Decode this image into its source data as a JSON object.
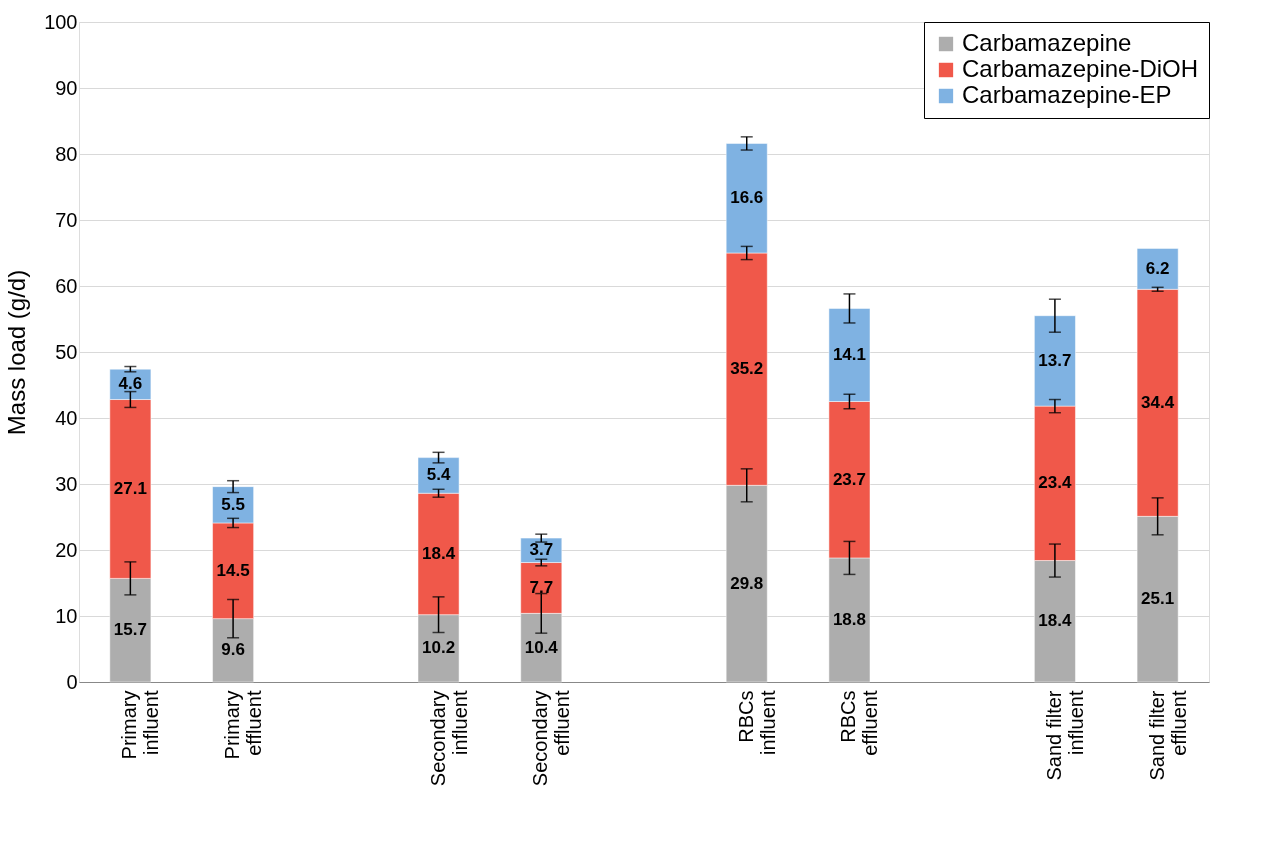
{
  "chart_data": {
    "type": "bar",
    "stacked": true,
    "ylabel": "Mass load (g/d)",
    "categories": [
      "Primary influent",
      "Primary effluent",
      null,
      "Secondary influent",
      "Secondary effluent",
      null,
      "RBCs influent",
      "RBCs effluent",
      null,
      "Sand filter influent",
      "Sand filter effluent"
    ],
    "series": [
      {
        "name": "Carbamazepine",
        "color": "#adadad",
        "values": [
          15.7,
          9.6,
          null,
          10.2,
          10.4,
          null,
          29.8,
          18.8,
          null,
          18.4,
          25.1
        ],
        "errors": [
          2.5,
          2.9,
          null,
          2.7,
          3.0,
          null,
          2.5,
          2.5,
          null,
          2.5,
          2.8
        ]
      },
      {
        "name": "Carbamazepine-DiOH",
        "color": "#f0584a",
        "values": [
          27.1,
          14.5,
          null,
          18.4,
          7.7,
          null,
          35.2,
          23.7,
          null,
          23.4,
          34.4
        ],
        "errors": [
          1.2,
          0.7,
          null,
          0.6,
          0.5,
          null,
          1.0,
          1.1,
          null,
          1.0,
          0.3
        ]
      },
      {
        "name": "Carbamazepine-EP",
        "color": "#7fb2e2",
        "values": [
          4.6,
          5.5,
          null,
          5.4,
          3.7,
          null,
          16.6,
          14.1,
          null,
          13.7,
          6.2
        ],
        "errors": [
          0.4,
          0.9,
          null,
          0.8,
          0.6,
          null,
          1.0,
          2.2,
          null,
          2.5,
          null
        ]
      }
    ],
    "ylim": [
      0,
      100
    ],
    "yticks": [
      0,
      10,
      20,
      30,
      40,
      50,
      60,
      70,
      80,
      90,
      100
    ],
    "grid": "y",
    "legend": "top right",
    "data_labels": true
  }
}
